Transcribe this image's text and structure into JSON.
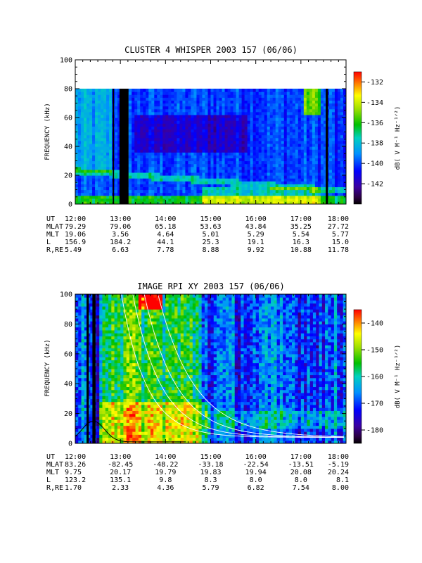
{
  "chart_data": [
    {
      "type": "heatmap",
      "title": "CLUSTER 4 WHISPER 2003 157 (06/06)",
      "ylabel": "FREQUENCY (kHz)",
      "ylim": [
        0,
        100
      ],
      "yticks": [
        "0",
        "20",
        "40",
        "60",
        "80",
        "100"
      ],
      "xlim": [
        "12:00",
        "18:00"
      ],
      "xticks": [
        "12:00",
        "13:00",
        "14:00",
        "15:00",
        "16:00",
        "17:00",
        "18:00"
      ],
      "data_frequency_max_khz": 80,
      "colorbar": {
        "label": "dB( V M⁻¹ Hz⁻¹ᐟ²)",
        "range": [
          -144,
          -131
        ],
        "ticks": [
          "-132",
          "-134",
          "-136",
          "-138",
          "-140",
          "-142"
        ],
        "colormap": "rainbow"
      },
      "data_gaps_ut": [
        [
          12.83,
          12.86
        ],
        [
          12.98,
          13.18
        ],
        [
          17.55,
          17.6
        ]
      ],
      "ephemeris": {
        "rows": [
          {
            "label": "UT",
            "values": [
              "12:00",
              "13:00",
              "14:00",
              "15:00",
              "16:00",
              "17:00",
              "18:00"
            ]
          },
          {
            "label": "MLAT",
            "values": [
              "79.29",
              "79.06",
              "65.18",
              "53.63",
              "43.84",
              "35.25",
              "27.72"
            ]
          },
          {
            "label": "MLT",
            "values": [
              "19.06",
              "3.56",
              "4.64",
              "5.01",
              "5.29",
              "5.54",
              "5.77"
            ]
          },
          {
            "label": "L",
            "values": [
              "156.9",
              "184.2",
              "44.1",
              "25.3",
              "19.1",
              "16.3",
              "15.0"
            ]
          },
          {
            "label": "R,RE",
            "values": [
              "5.49",
              "6.63",
              "7.78",
              "8.88",
              "9.92",
              "10.88",
              "11.78"
            ]
          }
        ]
      }
    },
    {
      "type": "heatmap",
      "title": "IMAGE RPI XY 2003 157 (06/06)",
      "ylabel": "FREQUENCY (kHz)",
      "ylim": [
        0,
        100
      ],
      "yticks": [
        "0",
        "20",
        "40",
        "60",
        "80",
        "100"
      ],
      "xlim": [
        "12:00",
        "18:00"
      ],
      "xticks": [
        "12:00",
        "13:00",
        "14:00",
        "15:00",
        "16:00",
        "17:00",
        "18:00"
      ],
      "colorbar": {
        "label": "dB( V M⁻¹ Hz⁻¹ᐟ²)",
        "range": [
          -185,
          -135
        ],
        "ticks": [
          "-140",
          "-150",
          "-160",
          "-170",
          "-180"
        ],
        "colormap": "rainbow"
      },
      "data_gaps_ut": [
        [
          12.25,
          12.3
        ],
        [
          12.38,
          12.45
        ]
      ],
      "ephemeris": {
        "rows": [
          {
            "label": "UT",
            "values": [
              "12:00",
              "13:00",
              "14:00",
              "15:00",
              "16:00",
              "17:00",
              "18:00"
            ]
          },
          {
            "label": "MLAT",
            "values": [
              "83.26",
              "-82.45",
              "-48.22",
              "-33.18",
              "-22.54",
              "-13.51",
              "-5.19"
            ]
          },
          {
            "label": "MLT",
            "values": [
              "9.75",
              "20.17",
              "19.79",
              "19.83",
              "19.94",
              "20.08",
              "20.24"
            ]
          },
          {
            "label": "L",
            "values": [
              "123.2",
              "135.1",
              "9.8",
              "8.3",
              "8.0",
              "8.0",
              "8.1"
            ]
          },
          {
            "label": "R,RE",
            "values": [
              "1.70",
              "2.33",
              "4.36",
              "5.79",
              "6.82",
              "7.54",
              "8.00"
            ]
          }
        ]
      }
    }
  ]
}
